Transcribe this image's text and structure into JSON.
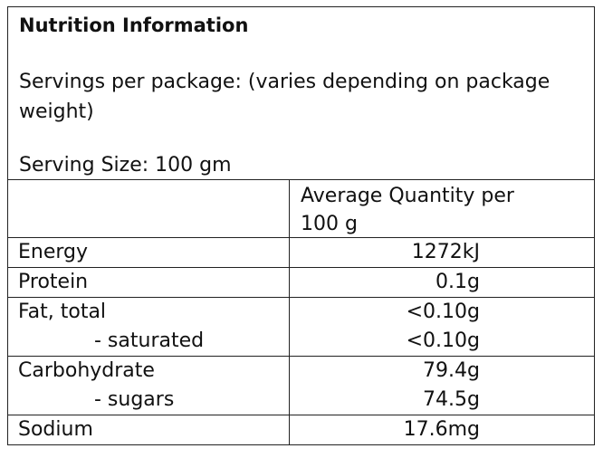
{
  "header": {
    "title": "Nutrition Information",
    "servings": "Servings per package: (varies depending on package weight)",
    "serving_size": "Serving Size: 100 gm"
  },
  "table": {
    "column_header": "Average Quantity per 100 g",
    "groups": [
      {
        "rows": [
          {
            "label": "Energy",
            "value": "1272kJ"
          }
        ]
      },
      {
        "rows": [
          {
            "label": "Protein",
            "value": "0.1g"
          }
        ]
      },
      {
        "rows": [
          {
            "label": "Fat, total",
            "value": "<0.10g"
          },
          {
            "label": "- saturated",
            "value": "<0.10g",
            "sub": true
          }
        ]
      },
      {
        "rows": [
          {
            "label": "Carbohydrate",
            "value": "79.4g"
          },
          {
            "label": "- sugars",
            "value": "74.5g",
            "sub": true
          }
        ]
      },
      {
        "rows": [
          {
            "label": "Sodium",
            "value": "17.6mg"
          }
        ]
      }
    ]
  }
}
